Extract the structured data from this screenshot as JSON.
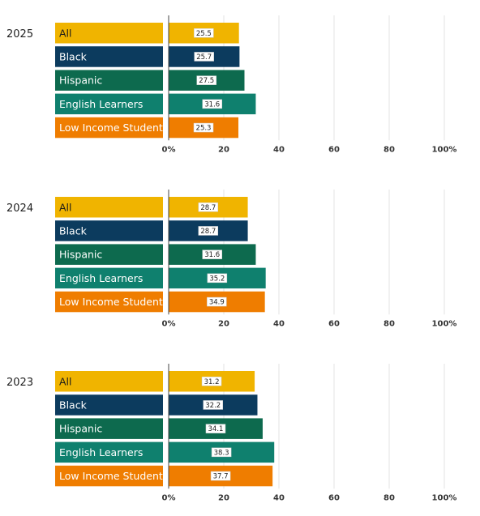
{
  "colors": {
    "All": "#F0B400",
    "Black": "#0C3B5E",
    "Hispanic": "#0D6A4E",
    "English Learners": "#0F806E",
    "Low Income Students": "#EF7D00",
    "label_text_dark": "#1a1a1a",
    "label_text_light": "#ffffff",
    "grid": "#e3e3e3",
    "axis": "#444444"
  },
  "chart_data": [
    {
      "type": "bar",
      "orientation": "horizontal",
      "title": "2025",
      "categories": [
        "All",
        "Black",
        "Hispanic",
        "English Learners",
        "Low Income Students"
      ],
      "values": [
        25.5,
        25.7,
        27.5,
        31.6,
        25.3
      ],
      "xlim": [
        0,
        100
      ],
      "x_ticks": [
        "0%",
        "20",
        "40",
        "60",
        "80",
        "100%"
      ],
      "grid": true
    },
    {
      "type": "bar",
      "orientation": "horizontal",
      "title": "2024",
      "categories": [
        "All",
        "Black",
        "Hispanic",
        "English Learners",
        "Low Income Students"
      ],
      "values": [
        28.7,
        28.7,
        31.6,
        35.2,
        34.9
      ],
      "xlim": [
        0,
        100
      ],
      "x_ticks": [
        "0%",
        "20",
        "40",
        "60",
        "80",
        "100%"
      ],
      "grid": true
    },
    {
      "type": "bar",
      "orientation": "horizontal",
      "title": "2023",
      "categories": [
        "All",
        "Black",
        "Hispanic",
        "English Learners",
        "Low Income Students"
      ],
      "values": [
        31.2,
        32.2,
        34.1,
        38.3,
        37.7
      ],
      "xlim": [
        0,
        100
      ],
      "x_ticks": [
        "0%",
        "20",
        "40",
        "60",
        "80",
        "100%"
      ],
      "grid": true
    }
  ]
}
